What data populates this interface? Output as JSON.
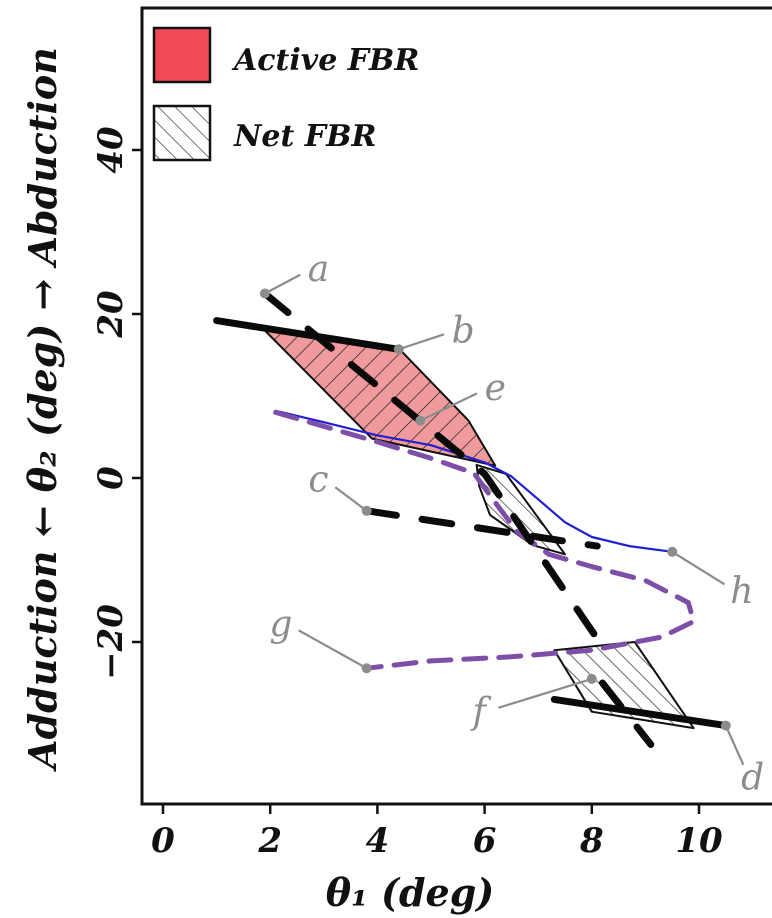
{
  "chart_data": {
    "type": "line",
    "xlabel": "θ₁ (deg)",
    "ylabel": "Adduction ← θ₂ (deg) → Abduction",
    "xlim": [
      -0.5,
      11.3
    ],
    "ylim": [
      -40,
      57
    ],
    "xticks": [
      "0",
      "2",
      "4",
      "6",
      "8",
      "10"
    ],
    "yticks": [
      "−20",
      "0",
      "20",
      "40"
    ],
    "xtick_values": [
      0,
      2,
      4,
      6,
      8,
      10
    ],
    "ytick_values": [
      -20,
      0,
      20,
      40
    ],
    "grid": false,
    "legend_position": "top-left",
    "legend": [
      {
        "label": "Active FBR",
        "style": "filled",
        "color": "#f04a57"
      },
      {
        "label": "Net FBR",
        "style": "hatched",
        "color": "#000000"
      }
    ],
    "regions": [
      {
        "kind": "active",
        "fill": "#ef9a9c",
        "hatched": true,
        "points": [
          [
            1.9,
            18
          ],
          [
            4.4,
            15.8
          ],
          [
            5.7,
            7
          ],
          [
            6.2,
            1.5
          ],
          [
            3.9,
            4.8
          ]
        ]
      },
      {
        "kind": "net",
        "hatched": true,
        "points": [
          [
            5.85,
            1.6
          ],
          [
            6.4,
            0.5
          ],
          [
            7.5,
            -9.3
          ],
          [
            6.9,
            -8.2
          ],
          [
            6.1,
            -4.5
          ],
          [
            5.9,
            -1
          ]
        ]
      },
      {
        "kind": "net",
        "hatched": true,
        "points": [
          [
            7.3,
            -21
          ],
          [
            8.8,
            -20
          ],
          [
            9.9,
            -30.5
          ],
          [
            8.0,
            -28.5
          ]
        ]
      }
    ],
    "segments": [
      {
        "style": "solid",
        "points": [
          [
            1.0,
            19.2
          ],
          [
            4.4,
            15.7
          ]
        ]
      },
      {
        "style": "dashed",
        "points": [
          [
            1.9,
            22.5
          ],
          [
            6.0,
            0.5
          ],
          [
            8.3,
            -21.5
          ]
        ]
      },
      {
        "style": "dashed",
        "points": [
          [
            3.8,
            -4.0
          ],
          [
            8.1,
            -8.3
          ]
        ]
      },
      {
        "style": "dashed",
        "points": [
          [
            8.2,
            -25
          ],
          [
            9.1,
            -32.5
          ]
        ]
      },
      {
        "style": "solid",
        "points": [
          [
            7.3,
            -27
          ],
          [
            10.5,
            -30.2
          ]
        ]
      }
    ],
    "series": [
      {
        "style": "solid-thin",
        "color": "#1f1fcf",
        "points": [
          [
            2.1,
            8.2
          ],
          [
            3,
            6.8
          ],
          [
            4,
            5.2
          ],
          [
            5,
            4.0
          ],
          [
            6,
            1.9
          ],
          [
            6.5,
            0.2
          ],
          [
            7.0,
            -2.6
          ],
          [
            7.5,
            -5.4
          ],
          [
            8,
            -7.2
          ],
          [
            8.7,
            -8.3
          ],
          [
            9.5,
            -9.0
          ]
        ]
      },
      {
        "style": "dashed-thick",
        "color": "#7d4fa8",
        "points": [
          [
            2.1,
            8.0
          ],
          [
            3,
            6.3
          ],
          [
            4,
            4.4
          ],
          [
            5,
            2.4
          ],
          [
            5.8,
            0.6
          ],
          [
            6.2,
            -3
          ],
          [
            6.6,
            -6.5
          ],
          [
            7.2,
            -9.3
          ],
          [
            8,
            -10.8
          ],
          [
            9,
            -12.5
          ],
          [
            9.8,
            -15.2
          ],
          [
            9.9,
            -17.5
          ],
          [
            9.3,
            -19.4
          ],
          [
            8,
            -21.0
          ],
          [
            6.5,
            -21.8
          ],
          [
            5,
            -22.3
          ],
          [
            3.8,
            -23.2
          ]
        ]
      }
    ],
    "point_labels": [
      {
        "text": "a",
        "point": [
          1.9,
          22.5
        ],
        "label_at": [
          2.9,
          25.5
        ]
      },
      {
        "text": "b",
        "point": [
          4.4,
          15.7
        ],
        "label_at": [
          5.6,
          18.0
        ]
      },
      {
        "text": "c",
        "point": [
          3.8,
          -4.0
        ],
        "label_at": [
          2.9,
          -0.2
        ]
      },
      {
        "text": "d",
        "point": [
          10.5,
          -30.2
        ],
        "label_at": [
          11.0,
          -36.5
        ]
      },
      {
        "text": "e",
        "point": [
          4.8,
          7.0
        ],
        "label_at": [
          6.2,
          11.0
        ]
      },
      {
        "text": "f",
        "point": [
          8.0,
          -24.5
        ],
        "label_at": [
          5.9,
          -28.5
        ]
      },
      {
        "text": "g",
        "point": [
          3.8,
          -23.2
        ],
        "label_at": [
          2.2,
          -17.8
        ]
      },
      {
        "text": "h",
        "point": [
          9.5,
          -9.0
        ],
        "label_at": [
          10.8,
          -13.8
        ]
      }
    ]
  }
}
